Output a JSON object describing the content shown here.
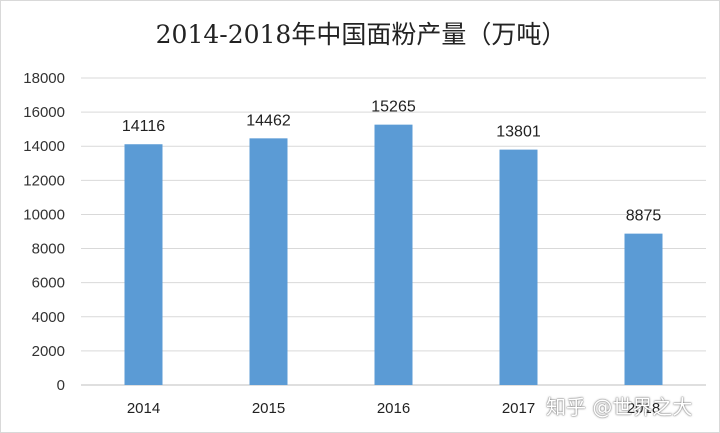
{
  "chart_data": {
    "type": "bar",
    "title": "2014-2018年中国面粉产量（万吨）",
    "categories": [
      "2014",
      "2015",
      "2016",
      "2017",
      "2018"
    ],
    "values": [
      14116,
      14462,
      15265,
      13801,
      8875
    ],
    "data_labels": [
      "14116",
      "14462",
      "15265",
      "13801",
      "8875"
    ],
    "ylim": [
      0,
      18000
    ],
    "yticks": [
      "0",
      "2000",
      "4000",
      "6000",
      "8000",
      "10000",
      "12000",
      "14000",
      "16000",
      "18000"
    ],
    "grid": true,
    "legend": "none",
    "bar_color": "#5b9bd5"
  },
  "watermark": "知乎 @世界之大"
}
